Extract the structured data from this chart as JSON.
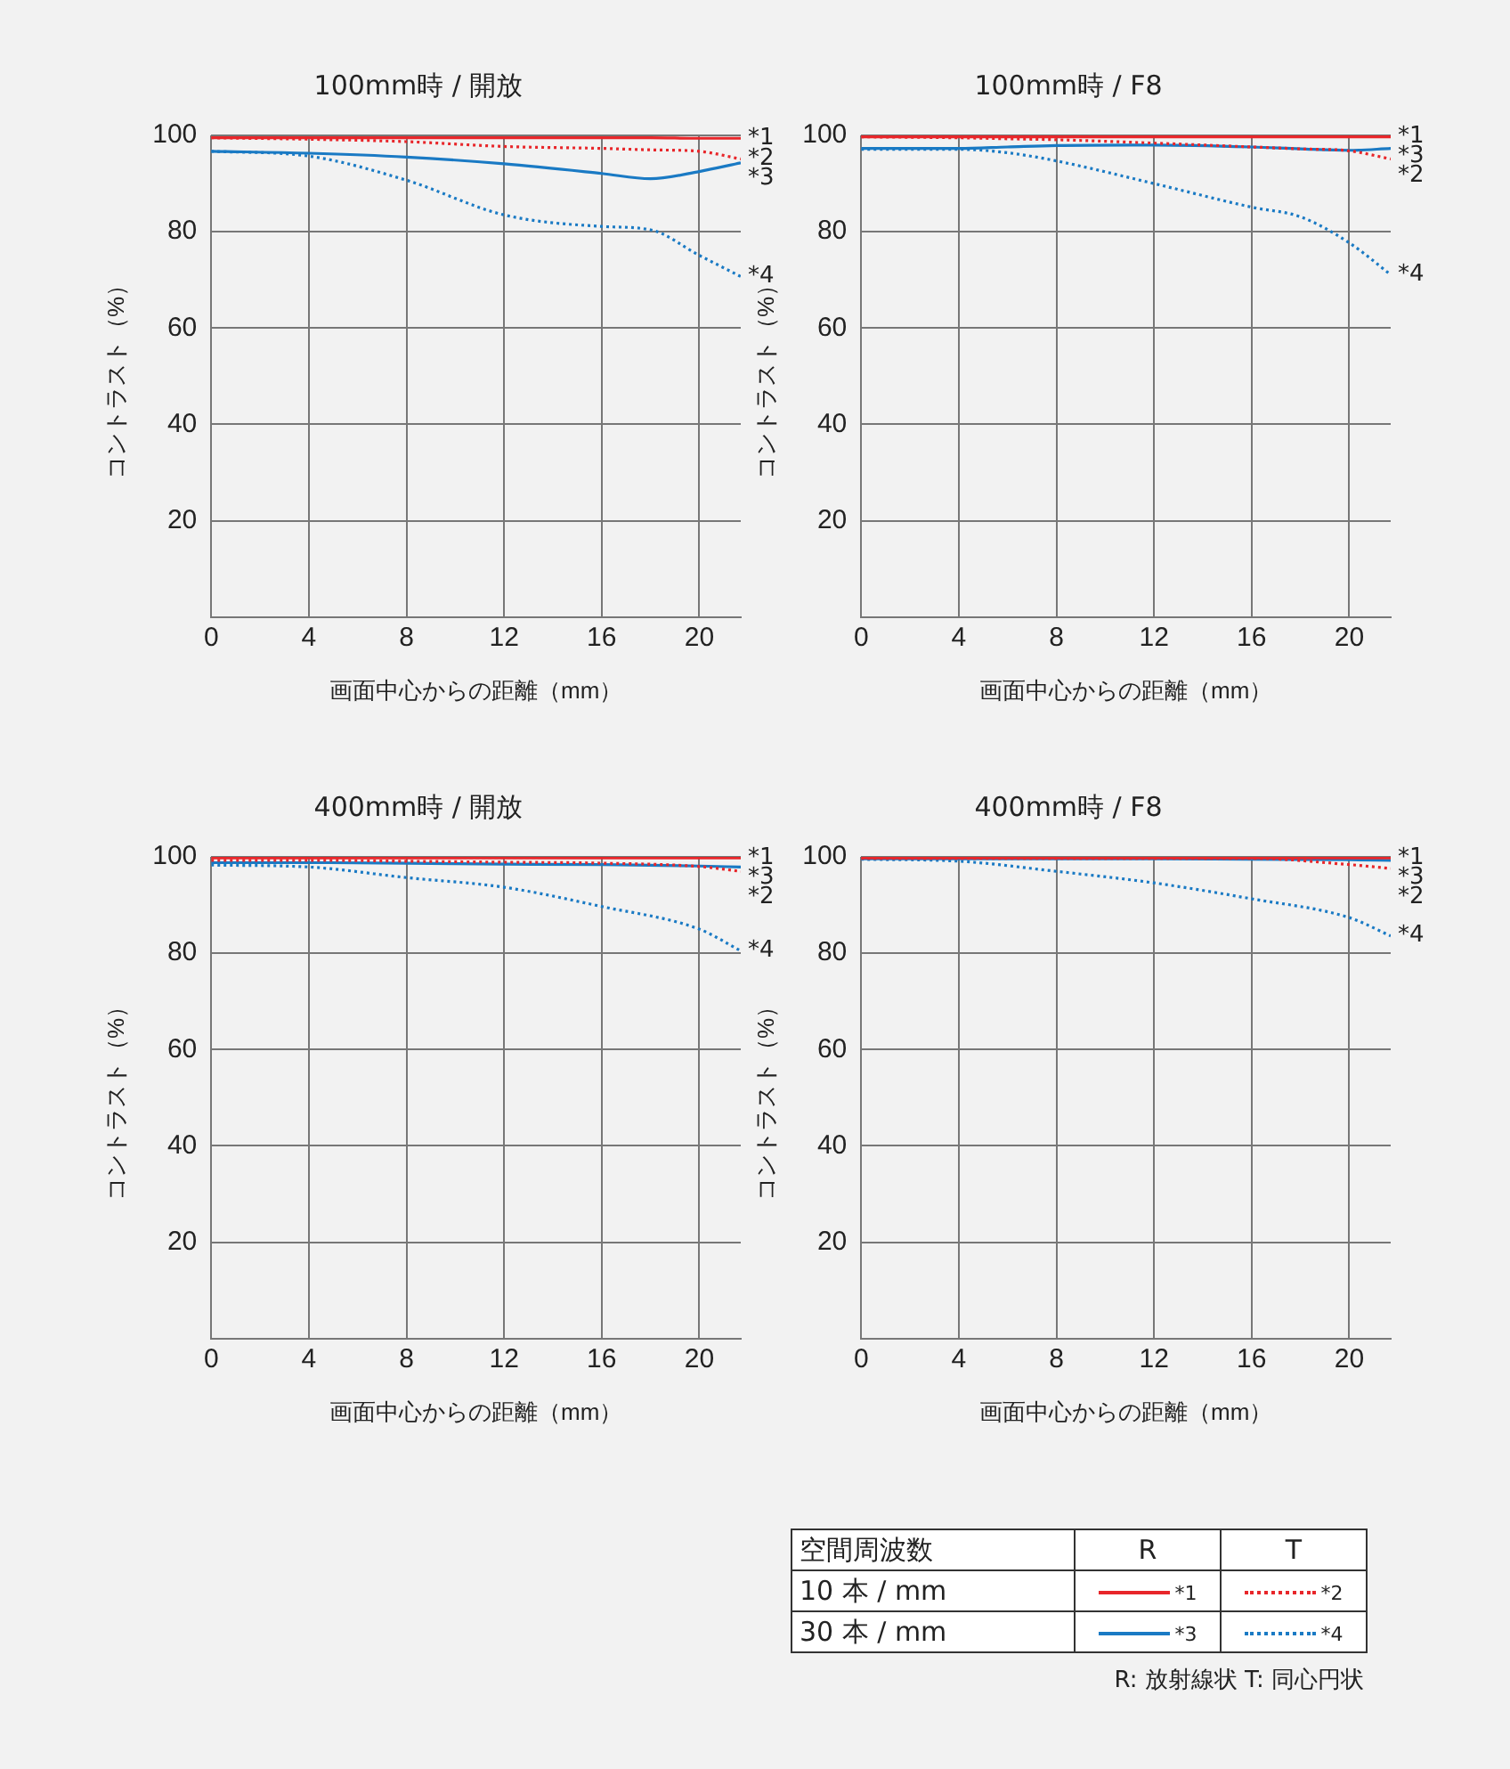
{
  "chart_data": [
    {
      "type": "line",
      "title": "100mm時 / 開放",
      "xlabel": "画面中心からの距離（mm）",
      "ylabel": "コントラスト（%）",
      "xlim": [
        0,
        21.7
      ],
      "ylim": [
        0,
        100
      ],
      "xticks": [
        0,
        4,
        8,
        12,
        16,
        20
      ],
      "yticks": [
        20,
        40,
        60,
        80,
        100
      ],
      "grid": true,
      "legend": false,
      "marker": "none",
      "x": [
        0,
        4,
        8,
        12,
        16,
        18,
        20,
        21.7
      ],
      "series": [
        {
          "name": "*1",
          "color": "#e8262a",
          "line_style": "solid",
          "values": [
            99.5,
            99.5,
            99.5,
            99.5,
            99.5,
            99.5,
            99.4,
            99.4
          ]
        },
        {
          "name": "*2",
          "color": "#e8262a",
          "line_style": "dotted",
          "values": [
            99.5,
            99.2,
            98.7,
            97.7,
            97.3,
            97.0,
            96.7,
            95.1
          ]
        },
        {
          "name": "*3",
          "color": "#1a7ac4",
          "line_style": "solid",
          "values": [
            96.7,
            96.3,
            95.5,
            94.1,
            92.1,
            91.0,
            92.5,
            94.3
          ]
        },
        {
          "name": "*4",
          "color": "#1a7ac4",
          "line_style": "dotted",
          "values": [
            96.7,
            95.7,
            90.7,
            83.5,
            81.1,
            80.4,
            75.1,
            70.7
          ]
        }
      ]
    },
    {
      "type": "line",
      "title": "100mm時 / F8",
      "xlabel": "画面中心からの距離（mm）",
      "ylabel": "コントラスト（%）",
      "xlim": [
        0,
        21.7
      ],
      "ylim": [
        0,
        100
      ],
      "xticks": [
        0,
        4,
        8,
        12,
        16,
        20
      ],
      "yticks": [
        20,
        40,
        60,
        80,
        100
      ],
      "grid": true,
      "legend": false,
      "marker": "none",
      "x": [
        0,
        4,
        6,
        8,
        12,
        16,
        18,
        20,
        21.7
      ],
      "series": [
        {
          "name": "*1",
          "color": "#e8262a",
          "line_style": "solid",
          "values": [
            99.7,
            99.7,
            99.7,
            99.7,
            99.7,
            99.7,
            99.7,
            99.7,
            99.7
          ]
        },
        {
          "name": "*2",
          "color": "#e8262a",
          "line_style": "dotted",
          "values": [
            99.7,
            99.5,
            99.3,
            99.1,
            98.4,
            97.6,
            97.2,
            96.8,
            95.1
          ]
        },
        {
          "name": "*3",
          "color": "#1a7ac4",
          "line_style": "solid",
          "values": [
            97.3,
            97.3,
            97.6,
            97.9,
            98.0,
            97.6,
            97.2,
            96.9,
            97.3
          ]
        },
        {
          "name": "*4",
          "color": "#1a7ac4",
          "line_style": "dotted",
          "values": [
            97.1,
            97.1,
            96.4,
            94.7,
            90.0,
            85.1,
            83.1,
            77.7,
            71.1
          ]
        }
      ]
    },
    {
      "type": "line",
      "title": "400mm時 / 開放",
      "xlabel": "画面中心からの距離（mm）",
      "ylabel": "コントラスト（%）",
      "xlim": [
        0,
        21.7
      ],
      "ylim": [
        0,
        100
      ],
      "xticks": [
        0,
        4,
        8,
        12,
        16,
        20
      ],
      "yticks": [
        20,
        40,
        60,
        80,
        100
      ],
      "grid": true,
      "legend": false,
      "marker": "none",
      "x": [
        0,
        4,
        8,
        12,
        16,
        20,
        21.7
      ],
      "series": [
        {
          "name": "*1",
          "color": "#e8262a",
          "line_style": "solid",
          "values": [
            99.8,
            99.8,
            99.8,
            99.8,
            99.8,
            99.8,
            99.8
          ]
        },
        {
          "name": "*2",
          "color": "#e8262a",
          "line_style": "dotted",
          "values": [
            99.3,
            99.3,
            99.1,
            98.9,
            98.7,
            98.0,
            97.0
          ]
        },
        {
          "name": "*3",
          "color": "#1a7ac4",
          "line_style": "solid",
          "values": [
            98.8,
            98.8,
            98.7,
            98.5,
            98.4,
            98.1,
            97.9
          ]
        },
        {
          "name": "*4",
          "color": "#1a7ac4",
          "line_style": "dotted",
          "values": [
            98.3,
            97.9,
            95.7,
            93.7,
            89.7,
            85.0,
            80.5
          ]
        }
      ]
    },
    {
      "type": "line",
      "title": "400mm時 / F8",
      "xlabel": "画面中心からの距離（mm）",
      "ylabel": "コントラスト（%）",
      "xlim": [
        0,
        21.7
      ],
      "ylim": [
        0,
        100
      ],
      "xticks": [
        0,
        4,
        8,
        12,
        16,
        20
      ],
      "yticks": [
        20,
        40,
        60,
        80,
        100
      ],
      "grid": true,
      "legend": false,
      "marker": "none",
      "x": [
        0,
        4,
        8,
        12,
        16,
        20,
        21.7
      ],
      "series": [
        {
          "name": "*1",
          "color": "#e8262a",
          "line_style": "solid",
          "values": [
            99.8,
            99.8,
            99.8,
            99.8,
            99.8,
            99.8,
            99.8
          ]
        },
        {
          "name": "*2",
          "color": "#e8262a",
          "line_style": "dotted",
          "values": [
            99.7,
            99.7,
            99.7,
            99.7,
            99.7,
            98.4,
            97.6
          ]
        },
        {
          "name": "*3",
          "color": "#1a7ac4",
          "line_style": "solid",
          "values": [
            99.6,
            99.6,
            99.6,
            99.6,
            99.5,
            99.4,
            99.3
          ]
        },
        {
          "name": "*4",
          "color": "#1a7ac4",
          "line_style": "dotted",
          "values": [
            99.5,
            99.1,
            97.0,
            94.6,
            91.3,
            87.4,
            83.6
          ]
        }
      ]
    },
    {
      "type": "other",
      "annotations": [
        "空間周波数",
        "R",
        "T",
        "10 本 / mm",
        "30 本 / mm",
        "*1",
        "*2",
        "*3",
        "*4",
        "R: 放射線状  T: 同心円状"
      ]
    }
  ]
}
